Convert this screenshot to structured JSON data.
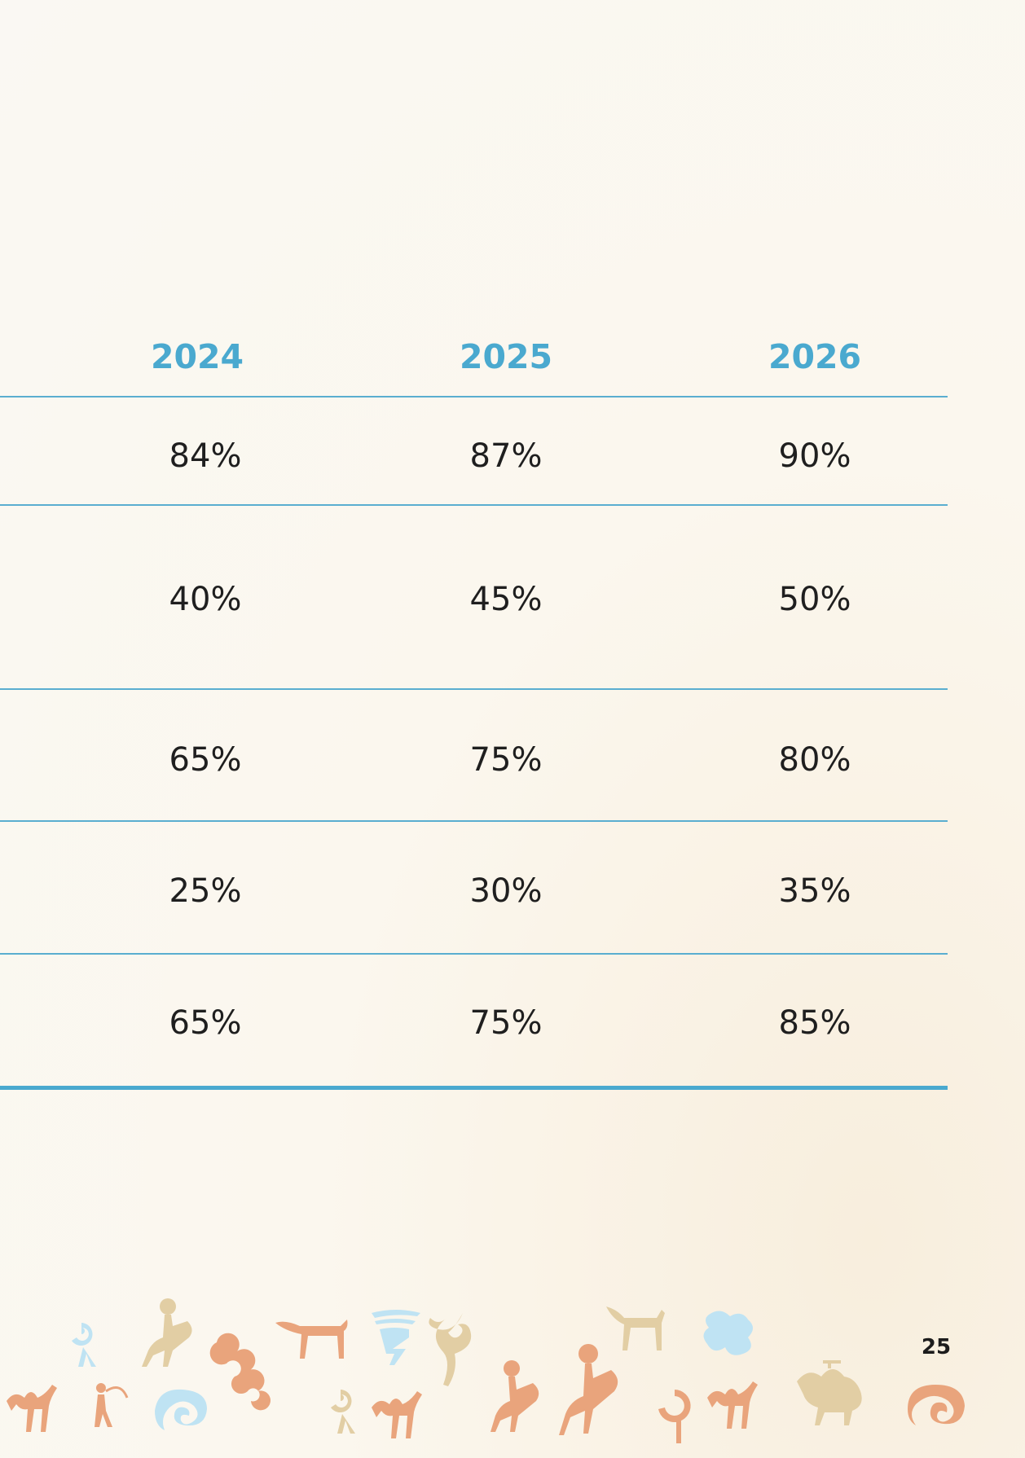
{
  "table": {
    "headers": [
      "2024",
      "2025",
      "2026"
    ],
    "rows": [
      [
        "84%",
        "87%",
        "90%"
      ],
      [
        "40%",
        "45%",
        "50%"
      ],
      [
        "65%",
        "75%",
        "80%"
      ],
      [
        "25%",
        "30%",
        "35%"
      ],
      [
        "65%",
        "75%",
        "85%"
      ]
    ]
  },
  "page_number": "25",
  "colors": {
    "accent": "#4aa9cf",
    "text": "#1f1f1f"
  },
  "decor": {
    "border_icons": [
      "petroglyph-camel-icon",
      "petroglyph-goat-icon",
      "petroglyph-horse-icon",
      "petroglyph-rider-icon",
      "petroglyph-archer-icon",
      "ornament-swirl-icon",
      "ornament-cloud-icon"
    ]
  }
}
